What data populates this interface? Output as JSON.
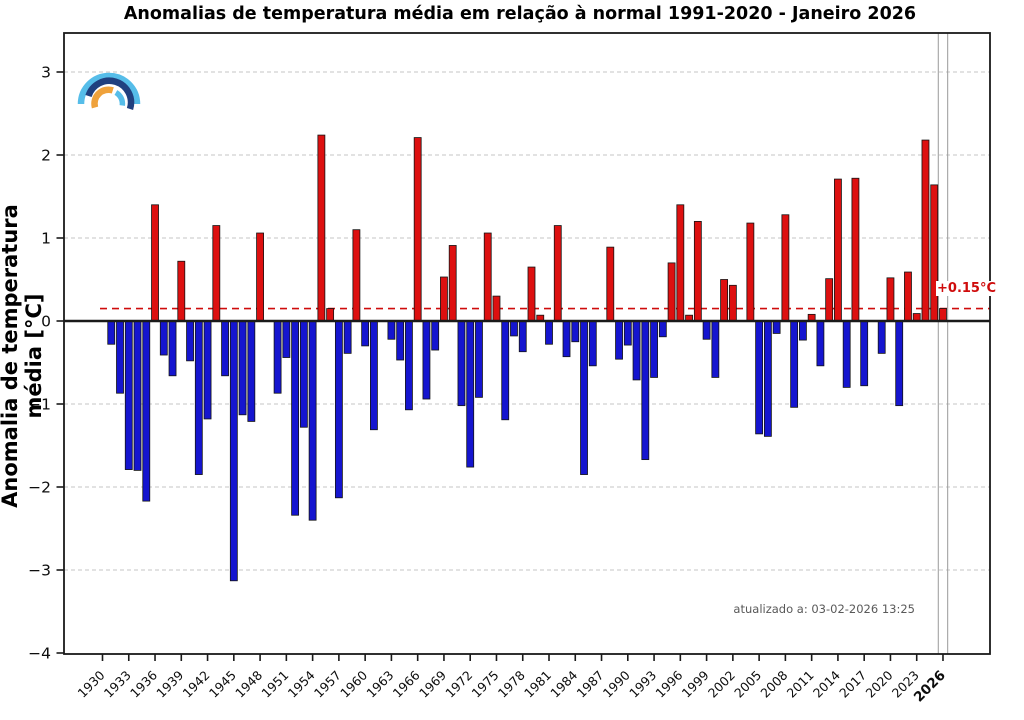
{
  "header": {
    "title": "Anomalias de temperatura média em relação à normal 1991-2020 - Janeiro 2026"
  },
  "footer": {
    "updated_text": "atualizado a: 03-02-2026 13:25"
  },
  "logo": {
    "name": "ipma-rainbow-logo",
    "colors": {
      "outer_arc": "#56bde9",
      "navy_arc": "#20407f",
      "orange_arc": "#efa23c",
      "inner_arc": "#56bde9"
    }
  },
  "chart_data": {
    "type": "bar",
    "title": "Anomalias de temperatura média em relação à normal 1991-2020 - Janeiro 2026",
    "xlabel": "",
    "ylabel": "Anomalia de temperatura média [°C]",
    "ylim": [
      -4,
      3.45
    ],
    "grid": "horizontal dashed gray lines at integer values",
    "legend_position": "none",
    "ytick_values": [
      3,
      2,
      1,
      0,
      -1,
      -2,
      -3,
      -4
    ],
    "ytick_labels": [
      "3",
      "2",
      "1",
      "0",
      "−1",
      "−2",
      "−3",
      "−4"
    ],
    "xtick_years": [
      1930,
      1933,
      1936,
      1939,
      1942,
      1945,
      1948,
      1951,
      1954,
      1957,
      1960,
      1963,
      1966,
      1969,
      1972,
      1975,
      1978,
      1981,
      1984,
      1987,
      1990,
      1993,
      1996,
      1999,
      2002,
      2005,
      2008,
      2011,
      2014,
      2017,
      2020,
      2023,
      2026
    ],
    "bold_xtick_year": 2026,
    "years": [
      1930,
      1931,
      1932,
      1933,
      1934,
      1935,
      1936,
      1937,
      1938,
      1939,
      1940,
      1941,
      1942,
      1943,
      1944,
      1945,
      1946,
      1947,
      1948,
      1949,
      1950,
      1951,
      1952,
      1953,
      1954,
      1955,
      1956,
      1957,
      1958,
      1959,
      1960,
      1961,
      1962,
      1963,
      1964,
      1965,
      1966,
      1967,
      1968,
      1969,
      1970,
      1971,
      1972,
      1973,
      1974,
      1975,
      1976,
      1977,
      1978,
      1979,
      1980,
      1981,
      1982,
      1983,
      1984,
      1985,
      1986,
      1987,
      1988,
      1989,
      1990,
      1991,
      1992,
      1993,
      1994,
      1995,
      1996,
      1997,
      1998,
      1999,
      2000,
      2001,
      2002,
      2003,
      2004,
      2005,
      2006,
      2007,
      2008,
      2009,
      2010,
      2011,
      2012,
      2013,
      2014,
      2015,
      2016,
      2017,
      2018,
      2019,
      2020,
      2021,
      2022,
      2023,
      2024,
      2025,
      2026
    ],
    "values": [
      null,
      -0.28,
      -0.87,
      -1.79,
      -1.8,
      -2.17,
      1.4,
      -0.41,
      -0.66,
      0.72,
      -0.48,
      -1.85,
      -1.18,
      1.15,
      -0.66,
      -3.13,
      -1.13,
      -1.21,
      1.06,
      null,
      -0.87,
      -0.44,
      -2.34,
      -1.28,
      -2.4,
      2.24,
      0.15,
      -2.13,
      -0.39,
      1.1,
      -0.3,
      -1.31,
      null,
      -0.22,
      -0.47,
      -1.07,
      2.21,
      -0.94,
      -0.35,
      0.53,
      0.91,
      -1.02,
      -1.76,
      -0.92,
      1.06,
      0.3,
      -1.19,
      -0.18,
      -0.37,
      0.65,
      0.07,
      -0.28,
      1.15,
      -0.43,
      -0.25,
      -1.85,
      -0.54,
      null,
      0.89,
      -0.46,
      -0.29,
      -0.71,
      -1.67,
      -0.68,
      -0.19,
      0.7,
      1.4,
      0.07,
      1.2,
      -0.22,
      -0.68,
      0.5,
      0.43,
      null,
      1.18,
      -1.36,
      -1.39,
      -0.15,
      1.28,
      -1.04,
      -0.23,
      0.08,
      -0.54,
      0.51,
      1.71,
      -0.8,
      1.72,
      -0.78,
      null,
      -0.39,
      0.52,
      -1.02,
      0.59,
      0.09,
      2.18,
      1.64,
      0.15
    ],
    "reference_line": {
      "value": 0.15,
      "label": "+0.15°C",
      "style": "dashed",
      "color": "#cf0c0c"
    },
    "current_year_marker": {
      "year": 2026,
      "style": "two thin vertical gray lines bracketing the last bar"
    },
    "colors": {
      "positive_bar": "#dd1010",
      "negative_bar": "#1515cf",
      "zero_line": "#1a1a1a",
      "gridline": "#c6c6c6",
      "marker_line": "#9a9a9a"
    }
  }
}
